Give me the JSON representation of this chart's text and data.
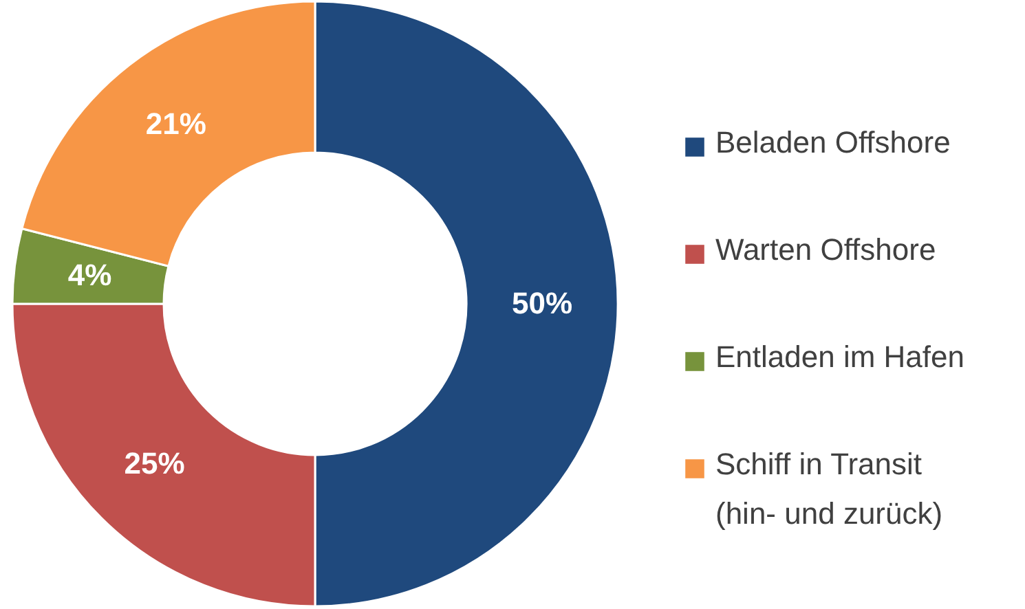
{
  "chart_data": {
    "type": "donut",
    "categories": [
      "Beladen Offshore",
      "Warten Offshore",
      "Entladen im Hafen",
      "Schiff in Transit (hin- und zurück)"
    ],
    "values": [
      50,
      25,
      4,
      21
    ],
    "colors": [
      "#1f497d",
      "#c0504d",
      "#77933c",
      "#f79646"
    ],
    "value_labels": [
      "50%",
      "25%",
      "4%",
      "21%"
    ],
    "legend": "right"
  }
}
